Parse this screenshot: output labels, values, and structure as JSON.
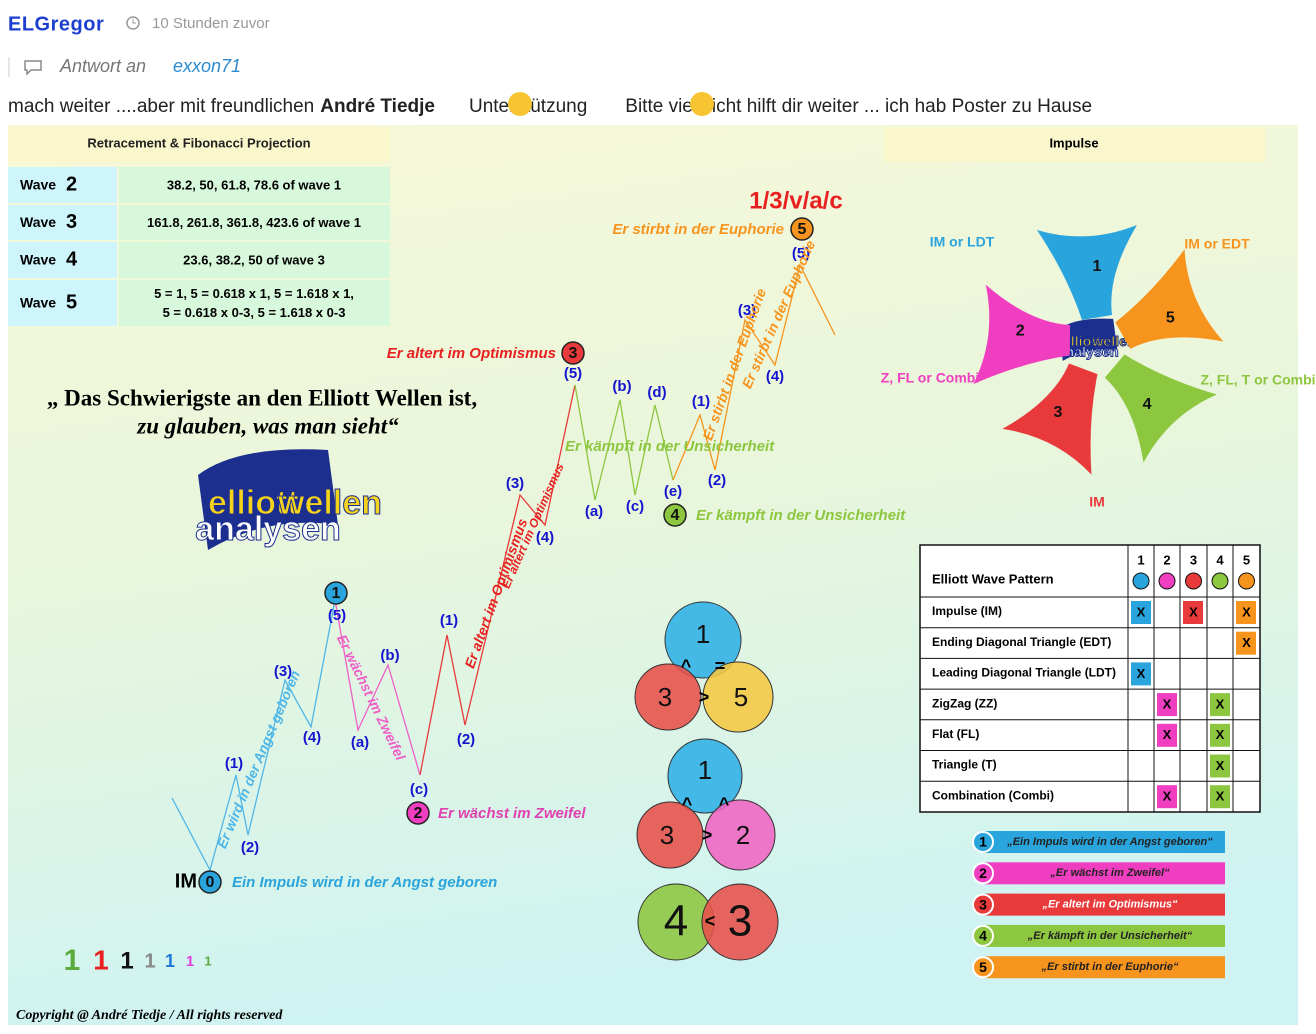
{
  "post": {
    "author": "ELGregor",
    "time": "10 Stunden zuvor",
    "reply_label": "Antwort an",
    "reply_to": "exxon71",
    "body": [
      "mach weiter ....aber mit freundlichen",
      "André Tiedje",
      "Unterstützung",
      "Bitte vielleicht hilft dir weiter ... ich hab Poster zu Hause"
    ]
  },
  "image": {
    "fib_title": "Retracement & Fibonacci Projection",
    "fib_rows": [
      {
        "label": "Wave",
        "num": "2",
        "text": [
          "38.2, 50, 61.8, 78.6 of wave 1"
        ]
      },
      {
        "label": "Wave",
        "num": "3",
        "text": [
          "161.8, 261.8, 361.8, 423.6 of wave 1"
        ]
      },
      {
        "label": "Wave",
        "num": "4",
        "text": [
          "23.6, 38.2, 50 of wave 3"
        ]
      },
      {
        "label": "Wave",
        "num": "5",
        "text": [
          "5 = 1, 5 = 0.618 x 1, 5 = 1.618 x 1,",
          "5 = 0.618 x 0-3, 5 = 1.618 x 0-3"
        ]
      }
    ],
    "impulse_title": "Impulse",
    "quote": [
      "„ Das Schwierigste an den Elliott Wellen ist,",
      "zu glauben, was man sieht“"
    ],
    "logo": [
      "elliott",
      "wellen",
      "analysen"
    ],
    "top_label": "1/3/v/a/c",
    "start_label": "IM",
    "wave_labels": [
      "(1)",
      "(2)",
      "(3)",
      "(4)",
      "(5)",
      "(a)",
      "(b)",
      "(c)",
      "(1)",
      "(2)",
      "(3)",
      "(4)",
      "(5)",
      "(a)",
      "(b)",
      "(c)",
      "(d)",
      "(e)",
      "(1)",
      "(2)",
      "(3)",
      "(4)",
      "(5)"
    ],
    "points": [
      {
        "num": "0",
        "caption": "Ein Impuls wird in der Angst geboren"
      },
      {
        "num": "1"
      },
      {
        "num": "2",
        "caption": "Er wächst im Zweifel"
      },
      {
        "num": "3",
        "caption": "Er altert im Optimismus"
      },
      {
        "num": "4",
        "caption": "Er kämpft in der Unsicherheit"
      },
      {
        "num": "5",
        "caption": "Er stirbt in der Euphorie"
      }
    ],
    "phrases": [
      "Er wird in der Angst geboren",
      "Er wächst im Zweifel",
      "Er altert im Optimismus",
      "Er altert im Optimismus",
      "Er kämpft in der Unsicherheit",
      "Er stirbt in der Euphorie",
      "Er stirbt in der Euphorie"
    ],
    "star": {
      "blades": [
        "1",
        "5",
        "4",
        "3",
        "2"
      ],
      "labels": [
        "IM or LDT",
        "IM or EDT",
        "Z, FL, T or Combi",
        "IM",
        "Z, FL or Combi"
      ]
    },
    "pattern": {
      "title": "Elliott Wave Pattern",
      "columns": [
        "1",
        "2",
        "3",
        "4",
        "5"
      ],
      "colors": [
        "#2aa4dc",
        "#f03ec0",
        "#e83a3a",
        "#8dc63f",
        "#f7941d"
      ],
      "rows": [
        {
          "name": "Impulse (IM)",
          "cells": [
            "X",
            null,
            "X",
            null,
            "X"
          ]
        },
        {
          "name": "Ending Diagonal Triangle (EDT)",
          "cells": [
            null,
            null,
            null,
            null,
            "X"
          ]
        },
        {
          "name": "Leading Diagonal Triangle (LDT)",
          "cells": [
            "X",
            null,
            null,
            null,
            null
          ]
        },
        {
          "name": "ZigZag (ZZ)",
          "cells": [
            null,
            "X",
            null,
            "X",
            null
          ]
        },
        {
          "name": "Flat (FL)",
          "cells": [
            null,
            "X",
            null,
            "X",
            null
          ]
        },
        {
          "name": "Triangle (T)",
          "cells": [
            null,
            null,
            null,
            "X",
            null
          ]
        },
        {
          "name": "Combination (Combi)",
          "cells": [
            null,
            "X",
            null,
            "X",
            null
          ]
        }
      ]
    },
    "legend": [
      {
        "num": "1",
        "text": "„Ein Impuls wird in der Angst geboren“"
      },
      {
        "num": "2",
        "text": "„Er wächst im Zweifel“"
      },
      {
        "num": "3",
        "text": "„Er altert im Optimismus“"
      },
      {
        "num": "4",
        "text": "„Er kämpft in der Unsicherheit“"
      },
      {
        "num": "5",
        "text": "„Er stirbt in der Euphorie“"
      }
    ],
    "venn": [
      {
        "circles": [
          "1",
          "3",
          "5"
        ],
        "signs": [
          "^",
          ">",
          "="
        ]
      },
      {
        "circles": [
          "1",
          "3",
          "2"
        ],
        "signs": [
          "^",
          ">",
          "^"
        ]
      },
      {
        "circles": [
          "4",
          "3"
        ],
        "signs": [
          "<"
        ]
      }
    ],
    "ones": [
      "1",
      "1",
      "1",
      "1",
      "1",
      "1",
      "1"
    ],
    "copyright": "Copyright @ André Tiedje / All rights reserved"
  }
}
